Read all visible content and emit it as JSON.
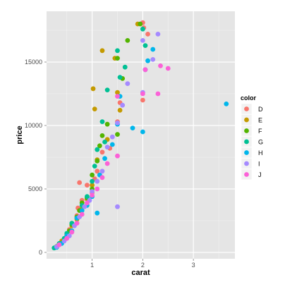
{
  "chart_data": {
    "type": "scatter",
    "xlabel": "carat",
    "ylabel": "price",
    "xlim": [
      0.1,
      3.82
    ],
    "ylim": [
      -500,
      19000
    ],
    "x_ticks": [
      1,
      2,
      3
    ],
    "y_ticks": [
      0,
      5000,
      10000,
      15000
    ],
    "x_tick_labels": [
      "1",
      "2",
      "3"
    ],
    "y_tick_labels": [
      "0",
      "5000",
      "10000",
      "15000"
    ],
    "grid": true,
    "background": "#e5e5e5",
    "legend": {
      "title": "color",
      "position": "right",
      "entries": [
        {
          "name": "D",
          "color": "#F8766D"
        },
        {
          "name": "E",
          "color": "#C49A00"
        },
        {
          "name": "F",
          "color": "#53B400"
        },
        {
          "name": "G",
          "color": "#00C094"
        },
        {
          "name": "H",
          "color": "#00B6EB"
        },
        {
          "name": "I",
          "color": "#A58AFF"
        },
        {
          "name": "J",
          "color": "#FB61D7"
        }
      ]
    },
    "series": [
      {
        "name": "D",
        "points": [
          [
            0.3,
            450
          ],
          [
            0.4,
            800
          ],
          [
            0.5,
            1400
          ],
          [
            0.55,
            1800
          ],
          [
            0.6,
            2300
          ],
          [
            0.7,
            2900
          ],
          [
            0.72,
            3500
          ],
          [
            0.8,
            4100
          ],
          [
            0.9,
            5300
          ],
          [
            0.75,
            5500
          ],
          [
            1.0,
            4700
          ],
          [
            1.05,
            5800
          ],
          [
            1.1,
            6400
          ],
          [
            1.2,
            7900
          ],
          [
            1.35,
            8200
          ],
          [
            1.5,
            10300
          ],
          [
            1.55,
            11800
          ],
          [
            2.0,
            12000
          ],
          [
            2.02,
            17700
          ],
          [
            2.0,
            18100
          ],
          [
            2.1,
            17200
          ]
        ]
      },
      {
        "name": "E",
        "points": [
          [
            0.3,
            420
          ],
          [
            0.35,
            650
          ],
          [
            0.4,
            900
          ],
          [
            0.5,
            1300
          ],
          [
            0.6,
            2100
          ],
          [
            0.7,
            2600
          ],
          [
            0.8,
            3500
          ],
          [
            0.9,
            4200
          ],
          [
            1.0,
            5300
          ],
          [
            1.02,
            12900
          ],
          [
            1.05,
            11300
          ],
          [
            1.2,
            15900
          ],
          [
            1.1,
            7300
          ],
          [
            1.3,
            8900
          ],
          [
            1.45,
            15300
          ],
          [
            1.5,
            12600
          ],
          [
            1.9,
            18000
          ],
          [
            1.55,
            11200
          ]
        ]
      },
      {
        "name": "F",
        "points": [
          [
            0.3,
            470
          ],
          [
            0.4,
            750
          ],
          [
            0.5,
            1200
          ],
          [
            0.55,
            1700
          ],
          [
            0.6,
            2200
          ],
          [
            0.7,
            2800
          ],
          [
            0.75,
            3300
          ],
          [
            0.8,
            3900
          ],
          [
            0.9,
            4300
          ],
          [
            1.0,
            5000
          ],
          [
            1.0,
            6100
          ],
          [
            1.1,
            7200
          ],
          [
            1.15,
            8400
          ],
          [
            1.2,
            9200
          ],
          [
            1.3,
            10100
          ],
          [
            1.5,
            9300
          ],
          [
            1.6,
            13700
          ],
          [
            1.7,
            16700
          ],
          [
            1.95,
            18000
          ],
          [
            1.5,
            15300
          ]
        ]
      },
      {
        "name": "G",
        "points": [
          [
            0.25,
            350
          ],
          [
            0.35,
            700
          ],
          [
            0.45,
            1100
          ],
          [
            0.5,
            1500
          ],
          [
            0.6,
            2300
          ],
          [
            0.7,
            2700
          ],
          [
            0.8,
            3700
          ],
          [
            0.9,
            4400
          ],
          [
            1.0,
            5600
          ],
          [
            1.05,
            6800
          ],
          [
            1.1,
            8100
          ],
          [
            1.2,
            10300
          ],
          [
            1.25,
            8700
          ],
          [
            1.3,
            12800
          ],
          [
            1.5,
            15900
          ],
          [
            1.55,
            13800
          ],
          [
            1.65,
            14600
          ],
          [
            2.0,
            17600
          ],
          [
            2.05,
            16300
          ]
        ]
      },
      {
        "name": "H",
        "points": [
          [
            0.3,
            400
          ],
          [
            0.4,
            700
          ],
          [
            0.5,
            1300
          ],
          [
            0.6,
            1700
          ],
          [
            0.7,
            2700
          ],
          [
            0.8,
            3300
          ],
          [
            0.9,
            3700
          ],
          [
            1.0,
            4400
          ],
          [
            1.1,
            3100
          ],
          [
            1.15,
            6100
          ],
          [
            1.25,
            7400
          ],
          [
            1.4,
            8500
          ],
          [
            1.5,
            10100
          ],
          [
            1.55,
            12300
          ],
          [
            1.8,
            9800
          ],
          [
            2.0,
            9500
          ],
          [
            2.05,
            14400
          ],
          [
            2.1,
            15100
          ],
          [
            2.2,
            16000
          ],
          [
            3.65,
            11700
          ]
        ]
      },
      {
        "name": "I",
        "points": [
          [
            0.3,
            450
          ],
          [
            0.45,
            900
          ],
          [
            0.55,
            1300
          ],
          [
            0.65,
            2100
          ],
          [
            0.75,
            2800
          ],
          [
            0.85,
            3600
          ],
          [
            0.95,
            4100
          ],
          [
            1.0,
            4800
          ],
          [
            1.1,
            5600
          ],
          [
            1.2,
            6400
          ],
          [
            1.3,
            8300
          ],
          [
            1.4,
            9100
          ],
          [
            1.5,
            10200
          ],
          [
            1.5,
            3600
          ],
          [
            1.6,
            11600
          ],
          [
            1.7,
            13300
          ],
          [
            2.0,
            12600
          ],
          [
            2.0,
            16700
          ],
          [
            2.2,
            15200
          ],
          [
            2.3,
            17200
          ]
        ]
      },
      {
        "name": "J",
        "points": [
          [
            0.35,
            600
          ],
          [
            0.5,
            1100
          ],
          [
            0.6,
            1600
          ],
          [
            0.7,
            2300
          ],
          [
            0.8,
            3000
          ],
          [
            0.9,
            3900
          ],
          [
            1.0,
            4500
          ],
          [
            1.1,
            5000
          ],
          [
            1.2,
            5900
          ],
          [
            1.3,
            7000
          ],
          [
            1.5,
            7600
          ],
          [
            1.5,
            12300
          ],
          [
            2.0,
            12500
          ],
          [
            2.05,
            14400
          ],
          [
            2.3,
            12500
          ],
          [
            2.35,
            14700
          ],
          [
            2.5,
            14500
          ]
        ]
      }
    ]
  }
}
